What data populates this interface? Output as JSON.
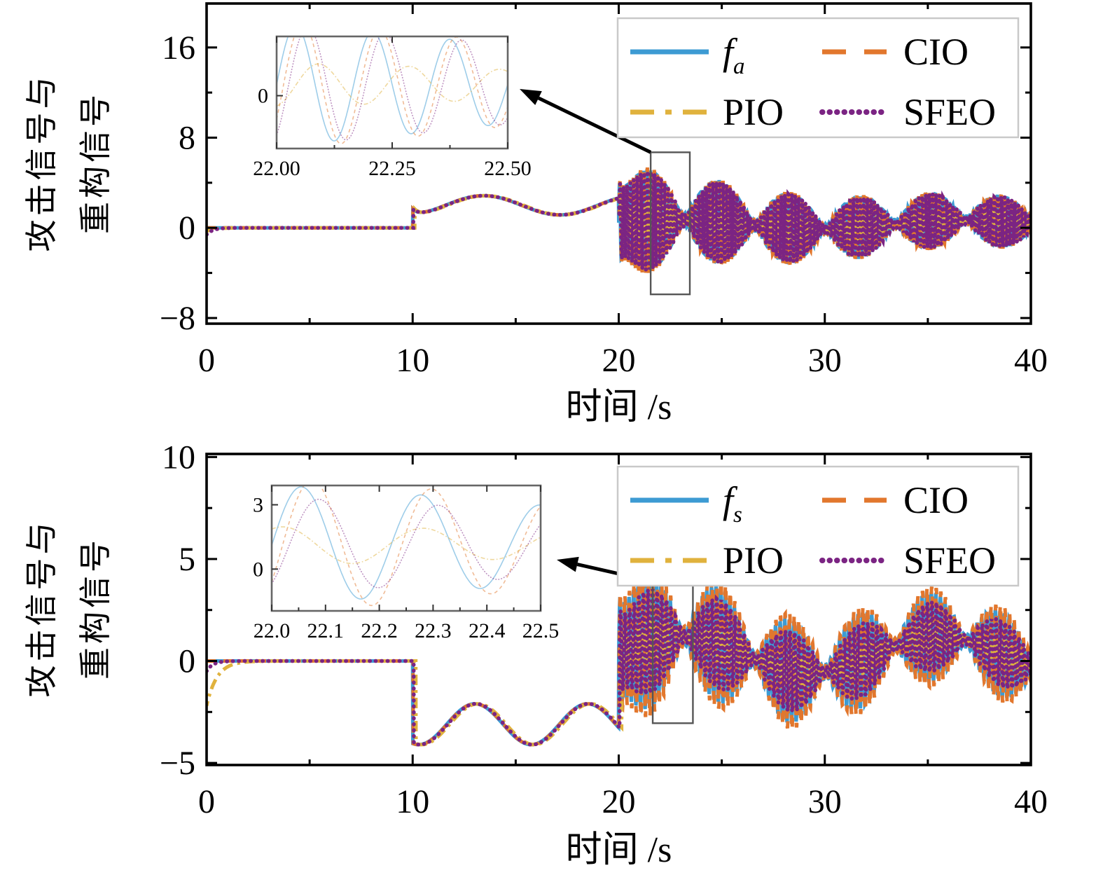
{
  "figure": {
    "background": "#ffffff",
    "axis_color": "#000000",
    "legend_border_color": "#c9c9c9",
    "zoom_rect_color": "#555555",
    "arrow_color": "#000000"
  },
  "chart_data": [
    {
      "id": "attack-signal",
      "type": "line",
      "title": "",
      "xlabel": "时间 /s",
      "ylabel_lines": [
        "攻击信号与",
        "重构信号"
      ],
      "xlim": [
        0,
        40
      ],
      "ylim": [
        -8.5,
        19.9
      ],
      "grid": false,
      "xticks": {
        "values": [
          0,
          10,
          20,
          30,
          40
        ],
        "labels": [
          "0",
          "10",
          "20",
          "30",
          "40"
        ],
        "minor": [
          5,
          15,
          25,
          35
        ]
      },
      "yticks": {
        "values": [
          16,
          8,
          0,
          -8
        ],
        "labels": [
          "16",
          "8",
          "0",
          "−8"
        ],
        "minor": [
          12,
          4,
          -4
        ]
      },
      "legend": {
        "position": "top-right",
        "columns": 2,
        "items": [
          {
            "label": "f",
            "subscript": "a",
            "color": "#3D9BD3",
            "line_style": "solid"
          },
          {
            "label": "CIO",
            "subscript": "",
            "color": "#E2772D",
            "line_style": "dashed"
          },
          {
            "label": "PIO",
            "subscript": "",
            "color": "#E0B23D",
            "line_style": "dash-dot"
          },
          {
            "label": "SFEO",
            "subscript": "",
            "color": "#7B2483",
            "line_style": "dotted"
          }
        ]
      },
      "signal_model": {
        "description": "attack signal: zero until t=10 s, slow sine hump 10-20 s, amplitude-modulated 6 Hz burst 20-40 s",
        "segments": [
          {
            "range": [
              0,
              10
            ],
            "kind": "constant",
            "value": 0
          },
          {
            "range": [
              10,
              20
            ],
            "kind": "sine",
            "offset": 2.0,
            "amp": 0.85,
            "omega": 0.85,
            "phase": -1.35,
            "onset_bump": {
              "amp": 0.5,
              "tau": 0.25
            }
          },
          {
            "range": [
              20,
              40
            ],
            "kind": "am",
            "carrier_hz": 6,
            "mean": {
              "offset": 0.3,
              "amp": 0.4,
              "omega": 0.45,
              "phase": 0.4
            },
            "envelope": {
              "base": 1.9,
              "decay": 3.0,
              "tau": 9,
              "mod_omega": 0.92,
              "mod_phase": -1.35,
              "mod_floor": 0.15,
              "onset": {
                "amp": 2.6,
                "tau": 0.3
              }
            }
          }
        ],
        "series": [
          {
            "name": "f_a",
            "color": "#3D9BD3",
            "style": "solid",
            "amp_scale": 1.0,
            "freq_scale": 1.0,
            "carrier_phase": 0,
            "lag": 0
          },
          {
            "name": "CIO",
            "color": "#E2772D",
            "style": "dashed",
            "amp_scale": 1.05,
            "freq_scale": 1.0,
            "carrier_phase": 0,
            "lag": 0.015
          },
          {
            "name": "PIO",
            "color": "#E0B23D",
            "style": "dash-dot",
            "amp_scale": 0.34,
            "freq_scale": 0.85,
            "carrier_phase": 0.6,
            "lag": 0.1,
            "start_transient": {
              "amp": -0.3,
              "tau": 0.4
            }
          },
          {
            "name": "SFEO",
            "color": "#7B2483",
            "style": "dotted",
            "amp_scale": 0.98,
            "freq_scale": 1.0,
            "carrier_phase": 0.15,
            "lag": 0.03,
            "start_transient": {
              "amp": -0.6,
              "tau": 0.3
            }
          }
        ]
      },
      "inset": {
        "xlim": [
          22.0,
          22.5
        ],
        "ylim": [
          -3.3,
          3.7
        ],
        "xticks": {
          "values": [
            22.0,
            22.25,
            22.5
          ],
          "labels": [
            "22.00",
            "22.25",
            "22.50"
          ],
          "minor": [
            22.125,
            22.375
          ]
        },
        "yticks": {
          "values": [
            0
          ],
          "labels": [
            "0"
          ]
        },
        "arrow_from_zoom_rect": true
      },
      "zoom_rect": {
        "x0": 21.55,
        "x1": 23.45,
        "y0": -5.9,
        "y1": 6.7
      }
    },
    {
      "id": "sensor-signal",
      "type": "line",
      "title": "",
      "xlabel": "时间 /s",
      "ylabel_lines": [
        "攻击信号与",
        "重构信号"
      ],
      "xlim": [
        0,
        40
      ],
      "ylim": [
        -5.1,
        10.15
      ],
      "grid": false,
      "xticks": {
        "values": [
          0,
          10,
          20,
          30,
          40
        ],
        "labels": [
          "0",
          "10",
          "20",
          "30",
          "40"
        ],
        "minor": [
          5,
          15,
          25,
          35
        ]
      },
      "yticks": {
        "values": [
          10,
          5,
          0,
          -5
        ],
        "labels": [
          "10",
          "5",
          "0",
          "−5"
        ],
        "minor": [
          7.5,
          2.5,
          -2.5
        ]
      },
      "legend": {
        "position": "top-right",
        "columns": 2,
        "items": [
          {
            "label": "f",
            "subscript": "s",
            "color": "#3D9BD3",
            "line_style": "solid"
          },
          {
            "label": "CIO",
            "subscript": "",
            "color": "#E2772D",
            "line_style": "dashed"
          },
          {
            "label": "PIO",
            "subscript": "",
            "color": "#E0B23D",
            "line_style": "dash-dot"
          },
          {
            "label": "SFEO",
            "subscript": "",
            "color": "#7B2483",
            "line_style": "dotted"
          }
        ]
      },
      "signal_model": {
        "description": "sensor signal: zero until t=10 s (PIO start transient), negative sine hump 10-20 s, amplitude-modulated 4.5 Hz burst 20-40 s",
        "segments": [
          {
            "range": [
              0,
              10
            ],
            "kind": "constant",
            "value": 0
          },
          {
            "range": [
              10,
              20
            ],
            "kind": "sine",
            "offset": -3.1,
            "amp": 1.0,
            "omega": 1.15,
            "phase": -1.9
          },
          {
            "range": [
              20,
              40
            ],
            "kind": "am",
            "carrier_hz": 4.5,
            "mean": {
              "offset": 0.3,
              "amp": 0.9,
              "omega": 0.5,
              "phase": 0.1
            },
            "envelope": {
              "base": 1.9,
              "decay": 1.6,
              "tau": 9,
              "mod_omega": 0.92,
              "mod_phase": -1.35,
              "mod_floor": 0.15,
              "onset": {
                "amp": 2.0,
                "tau": 0.3
              }
            }
          }
        ],
        "series": [
          {
            "name": "f_s",
            "color": "#3D9BD3",
            "style": "solid",
            "amp_scale": 1.0,
            "freq_scale": 1.0,
            "carrier_phase": 0,
            "lag": 0
          },
          {
            "name": "CIO",
            "color": "#E2772D",
            "style": "dashed",
            "amp_scale": 1.12,
            "freq_scale": 1.0,
            "carrier_phase": 0,
            "lag": 0.02
          },
          {
            "name": "PIO",
            "color": "#E0B23D",
            "style": "dash-dot",
            "amp_scale": 0.3,
            "freq_scale": 0.85,
            "carrier_phase": 0.6,
            "lag": 0.15,
            "start_transient": {
              "amp": -2.2,
              "tau": 0.5
            }
          },
          {
            "name": "SFEO",
            "color": "#7B2483",
            "style": "dotted",
            "amp_scale": 0.78,
            "freq_scale": 1.0,
            "carrier_phase": 0.5,
            "lag": 0.05,
            "start_transient": {
              "amp": -0.5,
              "tau": 0.3
            }
          }
        ]
      },
      "inset": {
        "xlim": [
          22.0,
          22.5
        ],
        "ylim": [
          -1.95,
          3.9
        ],
        "xticks": {
          "values": [
            22.0,
            22.1,
            22.2,
            22.3,
            22.4,
            22.5
          ],
          "labels": [
            "22.0",
            "22.1",
            "22.2",
            "22.3",
            "22.4",
            "22.5"
          ],
          "minor": [
            22.05,
            22.15,
            22.25,
            22.35,
            22.45
          ]
        },
        "yticks": {
          "values": [
            3,
            0
          ],
          "labels": [
            "3",
            "0"
          ]
        },
        "arrow_from_zoom_rect": true
      },
      "zoom_rect": {
        "x0": 21.65,
        "x1": 23.6,
        "y0": -3.05,
        "y1": 3.9
      }
    }
  ]
}
